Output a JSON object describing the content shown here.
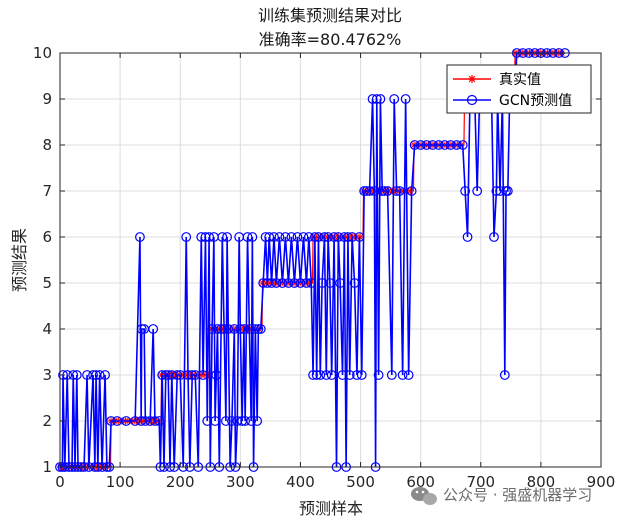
{
  "chart_data": {
    "type": "line",
    "title": "训练集预测结果对比",
    "subtitle": "准确率=80.4762%",
    "xlabel": "预测样本",
    "ylabel": "预测结果",
    "xlim": [
      0,
      900
    ],
    "ylim": [
      1,
      10
    ],
    "xticks": [
      0,
      100,
      200,
      300,
      400,
      500,
      600,
      700,
      800,
      900
    ],
    "yticks": [
      1,
      2,
      3,
      4,
      5,
      6,
      7,
      8,
      9,
      10
    ],
    "grid": true,
    "legend_position": "top-right",
    "series": [
      {
        "name": "真实值",
        "color": "#ff0000",
        "marker": "asterisk",
        "segments": [
          {
            "x_start": 1,
            "x_end": 84,
            "value": 1
          },
          {
            "x_start": 85,
            "x_end": 168,
            "value": 2
          },
          {
            "x_start": 169,
            "x_end": 252,
            "value": 3
          },
          {
            "x_start": 253,
            "x_end": 336,
            "value": 4
          },
          {
            "x_start": 337,
            "x_end": 420,
            "value": 5
          },
          {
            "x_start": 421,
            "x_end": 504,
            "value": 6
          },
          {
            "x_start": 505,
            "x_end": 588,
            "value": 7
          },
          {
            "x_start": 589,
            "x_end": 672,
            "value": 8
          },
          {
            "x_start": 673,
            "x_end": 756,
            "value": 9
          },
          {
            "x_start": 757,
            "x_end": 840,
            "value": 10
          }
        ]
      },
      {
        "name": "GCN预测值",
        "color": "#0000ff",
        "marker": "circle",
        "values": [
          [
            0,
            1
          ],
          [
            4,
            1
          ],
          [
            5,
            3
          ],
          [
            8,
            1
          ],
          [
            12,
            3
          ],
          [
            15,
            1
          ],
          [
            20,
            1
          ],
          [
            22,
            3
          ],
          [
            25,
            1
          ],
          [
            28,
            3
          ],
          [
            30,
            1
          ],
          [
            35,
            1
          ],
          [
            40,
            1
          ],
          [
            45,
            3
          ],
          [
            48,
            1
          ],
          [
            55,
            3
          ],
          [
            58,
            1
          ],
          [
            60,
            3
          ],
          [
            63,
            1
          ],
          [
            66,
            3
          ],
          [
            70,
            1
          ],
          [
            75,
            3
          ],
          [
            78,
            1
          ],
          [
            82,
            1
          ],
          [
            85,
            2
          ],
          [
            95,
            2
          ],
          [
            110,
            2
          ],
          [
            125,
            2
          ],
          [
            133,
            6
          ],
          [
            135,
            2
          ],
          [
            136,
            4
          ],
          [
            140,
            4
          ],
          [
            142,
            2
          ],
          [
            150,
            2
          ],
          [
            155,
            4
          ],
          [
            158,
            2
          ],
          [
            165,
            2
          ],
          [
            167,
            1
          ],
          [
            170,
            3
          ],
          [
            173,
            1
          ],
          [
            176,
            3
          ],
          [
            180,
            3
          ],
          [
            183,
            1
          ],
          [
            186,
            3
          ],
          [
            190,
            1
          ],
          [
            195,
            3
          ],
          [
            200,
            3
          ],
          [
            205,
            1
          ],
          [
            210,
            6
          ],
          [
            213,
            3
          ],
          [
            216,
            1
          ],
          [
            220,
            3
          ],
          [
            225,
            3
          ],
          [
            230,
            1
          ],
          [
            235,
            6
          ],
          [
            238,
            3
          ],
          [
            242,
            6
          ],
          [
            245,
            2
          ],
          [
            248,
            6
          ],
          [
            250,
            1
          ],
          [
            253,
            4
          ],
          [
            256,
            6
          ],
          [
            258,
            2
          ],
          [
            260,
            3
          ],
          [
            262,
            4
          ],
          [
            265,
            1
          ],
          [
            268,
            4
          ],
          [
            270,
            6
          ],
          [
            273,
            4
          ],
          [
            276,
            2
          ],
          [
            278,
            6
          ],
          [
            280,
            4
          ],
          [
            283,
            1
          ],
          [
            286,
            2
          ],
          [
            290,
            4
          ],
          [
            292,
            1
          ],
          [
            295,
            2
          ],
          [
            298,
            6
          ],
          [
            300,
            4
          ],
          [
            303,
            2
          ],
          [
            306,
            4
          ],
          [
            308,
            2
          ],
          [
            312,
            6
          ],
          [
            315,
            4
          ],
          [
            318,
            2
          ],
          [
            320,
            6
          ],
          [
            322,
            1
          ],
          [
            325,
            4
          ],
          [
            328,
            2
          ],
          [
            330,
            4
          ],
          [
            334,
            4
          ],
          [
            338,
            5
          ],
          [
            342,
            6
          ],
          [
            345,
            5
          ],
          [
            348,
            6
          ],
          [
            352,
            5
          ],
          [
            356,
            6
          ],
          [
            360,
            5
          ],
          [
            365,
            6
          ],
          [
            370,
            5
          ],
          [
            375,
            6
          ],
          [
            380,
            5
          ],
          [
            385,
            6
          ],
          [
            390,
            5
          ],
          [
            395,
            6
          ],
          [
            400,
            5
          ],
          [
            405,
            6
          ],
          [
            410,
            5
          ],
          [
            414,
            6
          ],
          [
            418,
            5
          ],
          [
            421,
            3
          ],
          [
            424,
            6
          ],
          [
            427,
            3
          ],
          [
            430,
            6
          ],
          [
            433,
            3
          ],
          [
            436,
            5
          ],
          [
            440,
            6
          ],
          [
            443,
            3
          ],
          [
            446,
            6
          ],
          [
            449,
            5
          ],
          [
            452,
            3
          ],
          [
            456,
            6
          ],
          [
            460,
            1
          ],
          [
            463,
            6
          ],
          [
            466,
            5
          ],
          [
            470,
            3
          ],
          [
            473,
            6
          ],
          [
            476,
            1
          ],
          [
            479,
            6
          ],
          [
            482,
            3
          ],
          [
            486,
            6
          ],
          [
            490,
            5
          ],
          [
            494,
            3
          ],
          [
            498,
            6
          ],
          [
            502,
            3
          ],
          [
            506,
            7
          ],
          [
            510,
            7
          ],
          [
            515,
            7
          ],
          [
            520,
            9
          ],
          [
            523,
            7
          ],
          [
            525,
            1
          ],
          [
            527,
            9
          ],
          [
            530,
            3
          ],
          [
            533,
            9
          ],
          [
            536,
            7
          ],
          [
            540,
            7
          ],
          [
            545,
            7
          ],
          [
            552,
            3
          ],
          [
            556,
            9
          ],
          [
            560,
            7
          ],
          [
            565,
            7
          ],
          [
            570,
            3
          ],
          [
            575,
            9
          ],
          [
            580,
            3
          ],
          [
            585,
            7
          ],
          [
            590,
            8
          ],
          [
            600,
            8
          ],
          [
            610,
            8
          ],
          [
            620,
            8
          ],
          [
            630,
            8
          ],
          [
            640,
            8
          ],
          [
            650,
            8
          ],
          [
            660,
            8
          ],
          [
            670,
            8
          ],
          [
            674,
            7
          ],
          [
            678,
            6
          ],
          [
            682,
            9
          ],
          [
            686,
            9
          ],
          [
            690,
            9
          ],
          [
            694,
            7
          ],
          [
            698,
            9
          ],
          [
            705,
            9
          ],
          [
            712,
            9
          ],
          [
            718,
            9
          ],
          [
            722,
            6
          ],
          [
            726,
            7
          ],
          [
            728,
            9
          ],
          [
            732,
            7
          ],
          [
            736,
            9
          ],
          [
            740,
            3
          ],
          [
            742,
            7
          ],
          [
            745,
            7
          ],
          [
            748,
            9
          ],
          [
            752,
            9
          ],
          [
            756,
            9
          ],
          [
            760,
            10
          ],
          [
            770,
            10
          ],
          [
            780,
            10
          ],
          [
            790,
            10
          ],
          [
            800,
            10
          ],
          [
            810,
            10
          ],
          [
            820,
            10
          ],
          [
            830,
            10
          ],
          [
            840,
            10
          ]
        ]
      }
    ]
  },
  "watermark": {
    "text": "公众号 · 强盛机器学习",
    "icon": "wechat-icon"
  }
}
